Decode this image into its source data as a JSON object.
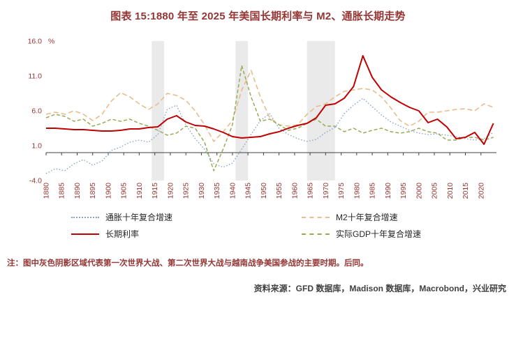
{
  "title": "图表 15:1880 年至 2025 年美国长期利率与 M2、通胀长期走势",
  "note": "注：图中灰色阴影区域代表第一次世界大战、第二次世界大战与越南战争美国参战的主要时期。后同。",
  "source": "资料来源：GFD 数据库，Madison 数据库，Macrobond，兴业研究",
  "colors": {
    "brand_red": "#943634",
    "axis_text": "#943634",
    "axis_line": "#404040",
    "shading": "#eaeaea"
  },
  "legend": [
    {
      "label": "通胀十年复合增速",
      "color": "#7f9ec9",
      "line_style": "dotted"
    },
    {
      "label": "M2十年复合增速",
      "color": "#e7bd8e",
      "line_style": "dashed"
    },
    {
      "label": "长期利率",
      "color": "#c00000",
      "line_style": "solid"
    },
    {
      "label": "实际GDP十年复合增速",
      "color": "#95ac55",
      "line_style": "dashed"
    }
  ],
  "chart_data": {
    "type": "line",
    "title": "1880 年至 2025 年美国长期利率与 M2、通胀长期走势",
    "unit": "%",
    "ylim": [
      -4,
      16
    ],
    "grid": false,
    "legend_position": "bottom",
    "text_color": "#943634",
    "axis_color": "#404040",
    "shading_color": "#eaeaea",
    "x_ticks": [
      1880,
      1885,
      1890,
      1895,
      1900,
      1905,
      1910,
      1915,
      1920,
      1925,
      1930,
      1935,
      1940,
      1945,
      1950,
      1955,
      1960,
      1965,
      1970,
      1975,
      1980,
      1985,
      1990,
      1995,
      2000,
      2005,
      2010,
      2015,
      2020
    ],
    "y_ticks": [
      {
        "label": "16.0",
        "value": 16
      },
      {
        "label": "11.0",
        "value": 11
      },
      {
        "label": "6.0",
        "value": 6
      },
      {
        "label": "1.0",
        "value": 1
      },
      {
        "label": "-4.0",
        "value": -4
      }
    ],
    "shaded_regions": [
      {
        "from": 1914,
        "to": 1918,
        "label": "第一次世界大战"
      },
      {
        "from": 1941,
        "to": 1945,
        "label": "第二次世界大战"
      },
      {
        "from": 1964,
        "to": 1973,
        "label": "越南战争"
      }
    ],
    "x": [
      1880,
      1883,
      1886,
      1889,
      1892,
      1895,
      1898,
      1901,
      1904,
      1907,
      1910,
      1913,
      1916,
      1919,
      1922,
      1925,
      1928,
      1931,
      1934,
      1937,
      1940,
      1943,
      1946,
      1949,
      1952,
      1955,
      1958,
      1961,
      1964,
      1967,
      1970,
      1973,
      1976,
      1979,
      1982,
      1985,
      1988,
      1991,
      1994,
      1997,
      2000,
      2003,
      2006,
      2009,
      2012,
      2015,
      2018,
      2021,
      2024
    ],
    "series": [
      {
        "id": "inflation-10y-cagr",
        "name": "通胀十年复合增速",
        "color": "#7f9ec9",
        "width": 1.3,
        "dash": "1.5 2.6",
        "values": [
          -3.0,
          -2.3,
          -2.6,
          -1.6,
          -1.0,
          -1.8,
          -1.2,
          0.3,
          0.8,
          1.5,
          1.8,
          1.5,
          2.6,
          6.2,
          6.8,
          4.0,
          2.0,
          0.5,
          -1.6,
          -2.1,
          -1.5,
          0.5,
          2.6,
          4.6,
          5.6,
          3.5,
          2.6,
          2.0,
          1.6,
          1.9,
          2.9,
          3.6,
          5.6,
          6.8,
          7.8,
          6.6,
          5.4,
          4.4,
          3.8,
          3.2,
          2.8,
          2.6,
          2.7,
          2.5,
          2.3,
          2.0,
          1.8,
          2.0,
          2.9
        ]
      },
      {
        "id": "m2-10y-cagr",
        "name": "M2十年复合增速",
        "color": "#e7bd8e",
        "width": 1.6,
        "dash": "7 4",
        "values": [
          5.5,
          5.8,
          5.5,
          6.0,
          5.5,
          4.6,
          5.5,
          7.4,
          8.6,
          8.0,
          7.0,
          6.2,
          7.0,
          8.5,
          8.2,
          7.5,
          6.0,
          4.0,
          1.6,
          3.0,
          4.6,
          9.0,
          11.8,
          8.0,
          5.0,
          4.0,
          3.8,
          4.0,
          5.5,
          6.6,
          7.0,
          8.0,
          8.8,
          9.0,
          9.2,
          9.0,
          8.0,
          6.4,
          4.6,
          3.8,
          4.5,
          5.8,
          5.8,
          6.0,
          6.2,
          6.3,
          6.0,
          7.0,
          6.5
        ]
      },
      {
        "id": "real-gdp-10y-cagr",
        "name": "实际GDP十年复合增速",
        "color": "#95ac55",
        "width": 1.5,
        "dash": "5 3",
        "values": [
          5.0,
          5.5,
          5.2,
          4.5,
          4.8,
          3.8,
          4.2,
          4.8,
          4.5,
          4.8,
          4.2,
          3.8,
          3.2,
          2.5,
          2.8,
          3.8,
          3.5,
          1.5,
          -2.6,
          0.5,
          4.0,
          12.5,
          8.0,
          4.5,
          4.8,
          4.0,
          3.2,
          3.5,
          4.2,
          4.8,
          3.8,
          3.8,
          3.0,
          3.5,
          2.8,
          3.2,
          3.5,
          3.0,
          2.8,
          3.0,
          3.5,
          3.0,
          2.8,
          1.8,
          1.8,
          2.2,
          2.2,
          1.8,
          2.2
        ]
      },
      {
        "id": "long-term-rate",
        "name": "长期利率",
        "color": "#c00000",
        "width": 2,
        "dash": "",
        "values": [
          3.5,
          3.5,
          3.4,
          3.3,
          3.3,
          3.2,
          3.1,
          3.1,
          3.2,
          3.4,
          3.4,
          3.6,
          3.7,
          4.8,
          5.3,
          4.4,
          3.9,
          3.8,
          3.4,
          2.9,
          2.3,
          2.1,
          2.2,
          2.3,
          2.7,
          3.0,
          3.5,
          3.9,
          4.2,
          5.0,
          6.8,
          7.0,
          7.8,
          9.5,
          13.9,
          10.8,
          9.0,
          8.0,
          7.2,
          6.5,
          6.0,
          4.3,
          4.8,
          3.7,
          2.0,
          2.2,
          2.9,
          1.2,
          4.2
        ]
      }
    ]
  }
}
